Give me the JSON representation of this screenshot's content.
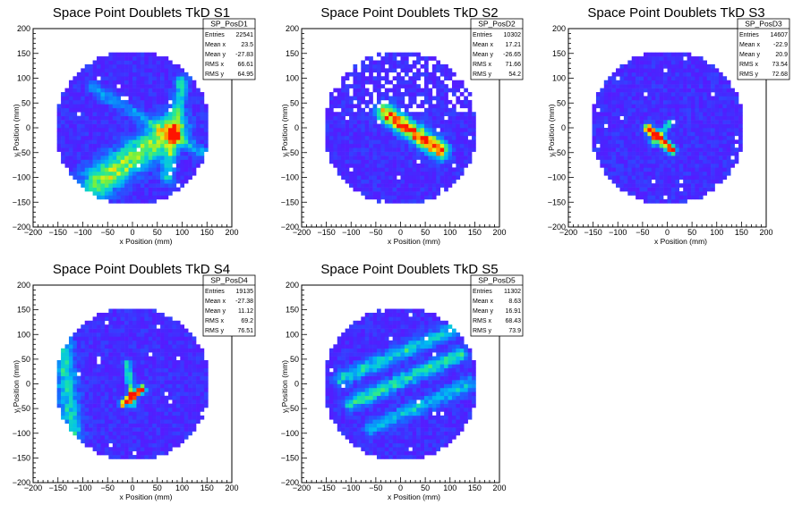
{
  "chart_data": [
    {
      "type": "heatmap",
      "title": "Space Point Doublets TkD S1",
      "xlabel": "x Position (mm)",
      "ylabel": "y Position (mm)",
      "xlim": [
        -200,
        200
      ],
      "ylim": [
        -200,
        200
      ],
      "xticks": [
        "−200",
        "−150",
        "−100",
        "−50",
        "0",
        "50",
        "100",
        "150",
        "200"
      ],
      "yticks": [
        "200",
        "150",
        "100",
        "50",
        "0",
        "−50",
        "−100",
        "−150",
        "−200"
      ],
      "stats": {
        "name": "SP_PosD1",
        "rows": [
          {
            "label": "Entries",
            "value": "22541"
          },
          {
            "label": "Mean x",
            "value": "23.5"
          },
          {
            "label": "Mean y",
            "value": "-27.83"
          },
          {
            "label": "RMS x",
            "value": "66.61"
          },
          {
            "label": "RMS y",
            "value": "64.95"
          }
        ]
      },
      "features": [
        {
          "kind": "band",
          "x0": -70,
          "y0": -110,
          "x1": 80,
          "y1": -5,
          "width": 22,
          "peak": 0.55
        },
        {
          "kind": "band",
          "x0": 70,
          "y0": -100,
          "x1": 100,
          "y1": 95,
          "width": 9,
          "peak": 0.35
        },
        {
          "kind": "band",
          "x0": -80,
          "y0": 80,
          "x1": 150,
          "y1": -55,
          "width": 8,
          "peak": 0.22
        }
      ]
    },
    {
      "type": "heatmap",
      "title": "Space Point Doublets TkD S2",
      "xlabel": "x Position (mm)",
      "ylabel": "y Position (mm)",
      "xlim": [
        -200,
        200
      ],
      "ylim": [
        -200,
        200
      ],
      "xticks": [
        "−200",
        "−150",
        "−100",
        "−50",
        "0",
        "50",
        "100",
        "150",
        "200"
      ],
      "yticks": [
        "200",
        "150",
        "100",
        "50",
        "0",
        "−50",
        "−100",
        "−150",
        "−200"
      ],
      "stats": {
        "name": "SP_PosD2",
        "rows": [
          {
            "label": "Entries",
            "value": "10302"
          },
          {
            "label": "Mean x",
            "value": "17.21"
          },
          {
            "label": "Mean y",
            "value": "-26.65"
          },
          {
            "label": "RMS x",
            "value": "71.66"
          },
          {
            "label": "RMS y",
            "value": "54.2"
          }
        ]
      },
      "features": [
        {
          "kind": "band",
          "x0": -30,
          "y0": 30,
          "x1": 80,
          "y1": -45,
          "width": 12,
          "peak": 0.85
        }
      ]
    },
    {
      "type": "heatmap",
      "title": "Space Point Doublets TkD S3",
      "xlabel": "x Position (mm)",
      "ylabel": "y Position (mm)",
      "xlim": [
        -200,
        200
      ],
      "ylim": [
        -200,
        200
      ],
      "xticks": [
        "−200",
        "−150",
        "−100",
        "−50",
        "0",
        "50",
        "100",
        "150",
        "200"
      ],
      "yticks": [
        "200",
        "150",
        "100",
        "50",
        "0",
        "−50",
        "−100",
        "−150",
        "−200"
      ],
      "stats": {
        "name": "SP_PosD3",
        "rows": [
          {
            "label": "Entries",
            "value": "14607"
          },
          {
            "label": "Mean x",
            "value": "-22.9"
          },
          {
            "label": "Mean y",
            "value": "20.9"
          },
          {
            "label": "RMS x",
            "value": "73.54"
          },
          {
            "label": "RMS y",
            "value": "72.68"
          }
        ]
      },
      "features": [
        {
          "kind": "band",
          "x0": -40,
          "y0": 0,
          "x1": 10,
          "y1": -45,
          "width": 6,
          "peak": 0.95
        },
        {
          "kind": "band",
          "x0": -30,
          "y0": -30,
          "x1": 5,
          "y1": 10,
          "width": 5,
          "peak": 0.4
        }
      ]
    },
    {
      "type": "heatmap",
      "title": "Space Point Doublets TkD S4",
      "xlabel": "x Position (mm)",
      "ylabel": "y Position (mm)",
      "xlim": [
        -200,
        200
      ],
      "ylim": [
        -200,
        200
      ],
      "xticks": [
        "−200",
        "−150",
        "−100",
        "−50",
        "0",
        "50",
        "100",
        "150",
        "200"
      ],
      "yticks": [
        "200",
        "150",
        "100",
        "50",
        "0",
        "−50",
        "−100",
        "−150",
        "−200"
      ],
      "stats": {
        "name": "SP_PosD4",
        "rows": [
          {
            "label": "Entries",
            "value": "19135"
          },
          {
            "label": "Mean x",
            "value": "-27.38"
          },
          {
            "label": "Mean y",
            "value": "11.12"
          },
          {
            "label": "RMS x",
            "value": "69.2"
          },
          {
            "label": "RMS y",
            "value": "76.51"
          }
        ]
      },
      "features": [
        {
          "kind": "band",
          "x0": -150,
          "y0": 150,
          "x1": -120,
          "y1": -100,
          "width": 14,
          "peak": 0.35
        },
        {
          "kind": "band",
          "x0": -10,
          "y0": 40,
          "x1": 0,
          "y1": -40,
          "width": 5,
          "peak": 0.45
        },
        {
          "kind": "band",
          "x0": -20,
          "y0": -40,
          "x1": 20,
          "y1": -10,
          "width": 5,
          "peak": 0.95
        }
      ]
    },
    {
      "type": "heatmap",
      "title": "Space Point Doublets TkD S5",
      "xlabel": "x Position (mm)",
      "ylabel": "y Position (mm)",
      "xlim": [
        -200,
        200
      ],
      "ylim": [
        -200,
        200
      ],
      "xticks": [
        "−200",
        "−150",
        "−100",
        "−50",
        "0",
        "50",
        "100",
        "150",
        "200"
      ],
      "yticks": [
        "200",
        "150",
        "100",
        "50",
        "0",
        "−50",
        "−100",
        "−150",
        "−200"
      ],
      "stats": {
        "name": "SP_PosD5",
        "rows": [
          {
            "label": "Entries",
            "value": "11302"
          },
          {
            "label": "Mean x",
            "value": "8.63"
          },
          {
            "label": "Mean y",
            "value": "16.91"
          },
          {
            "label": "RMS x",
            "value": "68.43"
          },
          {
            "label": "RMS y",
            "value": "73.9"
          }
        ]
      },
      "features": [
        {
          "kind": "band",
          "x0": -100,
          "y0": -40,
          "x1": 120,
          "y1": 60,
          "width": 10,
          "peak": 0.4
        },
        {
          "kind": "band",
          "x0": -120,
          "y0": 10,
          "x1": 130,
          "y1": 120,
          "width": 10,
          "peak": 0.35
        },
        {
          "kind": "band",
          "x0": -60,
          "y0": -90,
          "x1": 140,
          "y1": 0,
          "width": 10,
          "peak": 0.3
        }
      ]
    }
  ]
}
